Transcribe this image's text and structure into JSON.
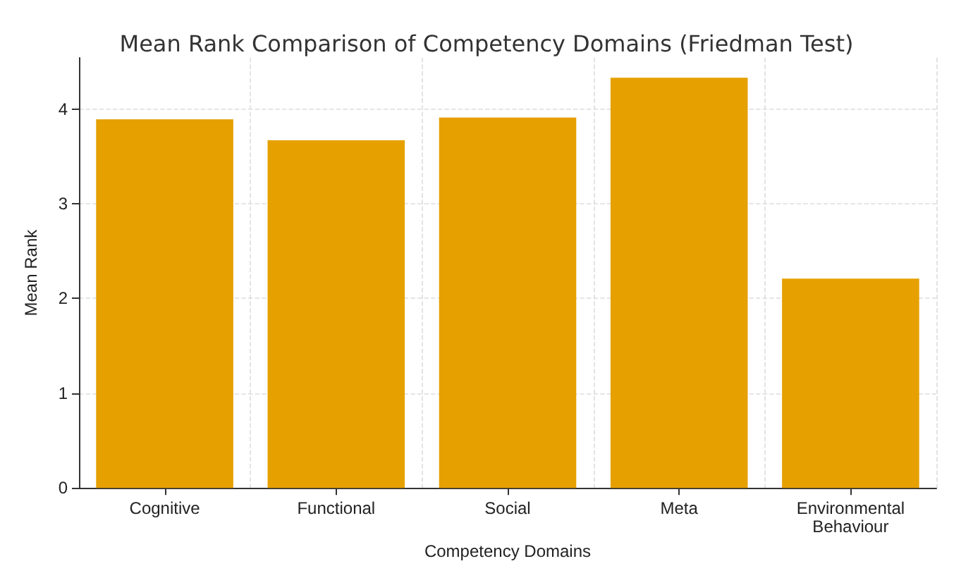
{
  "chart_data": {
    "type": "bar",
    "title": "Mean Rank Comparison of Competency Domains (Friedman Test)",
    "xlabel": "Competency Domains",
    "ylabel": "Mean Rank",
    "categories": [
      "Cognitive",
      "Functional",
      "Social",
      "Meta",
      "Environmental\nBehaviour"
    ],
    "values": [
      3.89,
      3.67,
      3.91,
      4.33,
      2.21
    ],
    "color": "#e6a000",
    "ylim": [
      0,
      4.54
    ],
    "yticks": [
      0,
      1,
      2,
      3,
      4
    ],
    "grid": true
  }
}
